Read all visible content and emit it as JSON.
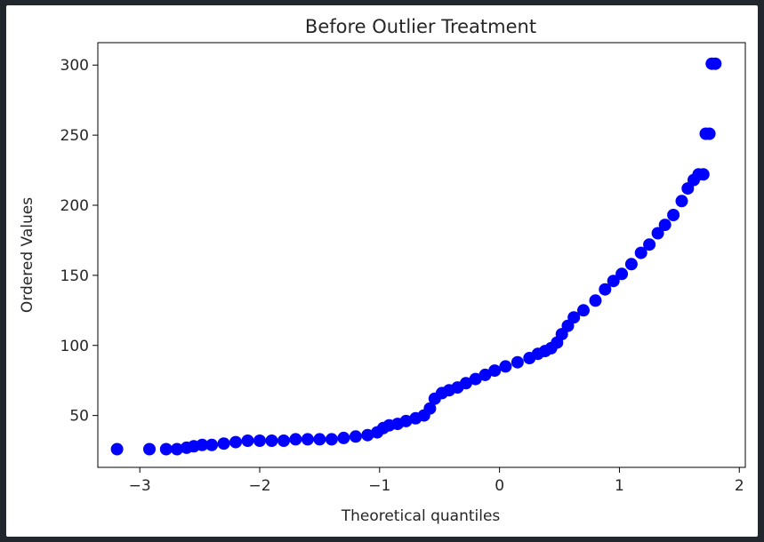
{
  "colors": {
    "page_background": "#22272e",
    "figure_background": "#ffffff",
    "marker": "#0000ff",
    "axis": "#000000"
  },
  "chart_data": {
    "type": "scatter",
    "title": "Before Outlier Treatment",
    "xlabel": "Theoretical quantiles",
    "ylabel": "Ordered Values",
    "xlim": [
      -3.35,
      2.05
    ],
    "ylim": [
      13,
      316
    ],
    "xticks": [
      -3,
      -2,
      -1,
      0,
      1,
      2
    ],
    "xtick_labels": [
      "−3",
      "−2",
      "−1",
      "0",
      "1",
      "2"
    ],
    "yticks": [
      50,
      100,
      150,
      200,
      250,
      300
    ],
    "ytick_labels": [
      "50",
      "100",
      "150",
      "200",
      "250",
      "300"
    ],
    "grid": false,
    "legend": "none",
    "series": [
      {
        "marker": "circle",
        "color": "#0000ff",
        "points": [
          [
            -3.19,
            26
          ],
          [
            -2.92,
            26
          ],
          [
            -2.78,
            26
          ],
          [
            -2.69,
            26
          ],
          [
            -2.61,
            27
          ],
          [
            -2.55,
            28
          ],
          [
            -2.48,
            29
          ],
          [
            -2.4,
            29
          ],
          [
            -2.3,
            30
          ],
          [
            -2.2,
            31
          ],
          [
            -2.1,
            32
          ],
          [
            -2.0,
            32
          ],
          [
            -1.9,
            32
          ],
          [
            -1.8,
            32
          ],
          [
            -1.7,
            33
          ],
          [
            -1.6,
            33
          ],
          [
            -1.5,
            33
          ],
          [
            -1.4,
            33
          ],
          [
            -1.3,
            34
          ],
          [
            -1.2,
            35
          ],
          [
            -1.1,
            36
          ],
          [
            -1.02,
            38
          ],
          [
            -0.97,
            41
          ],
          [
            -0.92,
            43
          ],
          [
            -0.85,
            44
          ],
          [
            -0.78,
            46
          ],
          [
            -0.7,
            48
          ],
          [
            -0.63,
            50
          ],
          [
            -0.58,
            55
          ],
          [
            -0.54,
            62
          ],
          [
            -0.48,
            66
          ],
          [
            -0.42,
            68
          ],
          [
            -0.35,
            70
          ],
          [
            -0.28,
            73
          ],
          [
            -0.2,
            76
          ],
          [
            -0.12,
            79
          ],
          [
            -0.04,
            82
          ],
          [
            0.05,
            85
          ],
          [
            0.15,
            88
          ],
          [
            0.25,
            91
          ],
          [
            0.32,
            94
          ],
          [
            0.38,
            96
          ],
          [
            0.43,
            98
          ],
          [
            0.48,
            102
          ],
          [
            0.52,
            108
          ],
          [
            0.57,
            114
          ],
          [
            0.62,
            120
          ],
          [
            0.7,
            125
          ],
          [
            0.8,
            132
          ],
          [
            0.88,
            140
          ],
          [
            0.95,
            146
          ],
          [
            1.02,
            151
          ],
          [
            1.1,
            158
          ],
          [
            1.18,
            166
          ],
          [
            1.25,
            172
          ],
          [
            1.32,
            180
          ],
          [
            1.38,
            186
          ],
          [
            1.45,
            193
          ],
          [
            1.52,
            203
          ],
          [
            1.57,
            212
          ],
          [
            1.62,
            218
          ],
          [
            1.66,
            222
          ],
          [
            1.7,
            222
          ],
          [
            1.72,
            251
          ],
          [
            1.75,
            251
          ],
          [
            1.77,
            301
          ],
          [
            1.8,
            301
          ]
        ]
      }
    ]
  }
}
